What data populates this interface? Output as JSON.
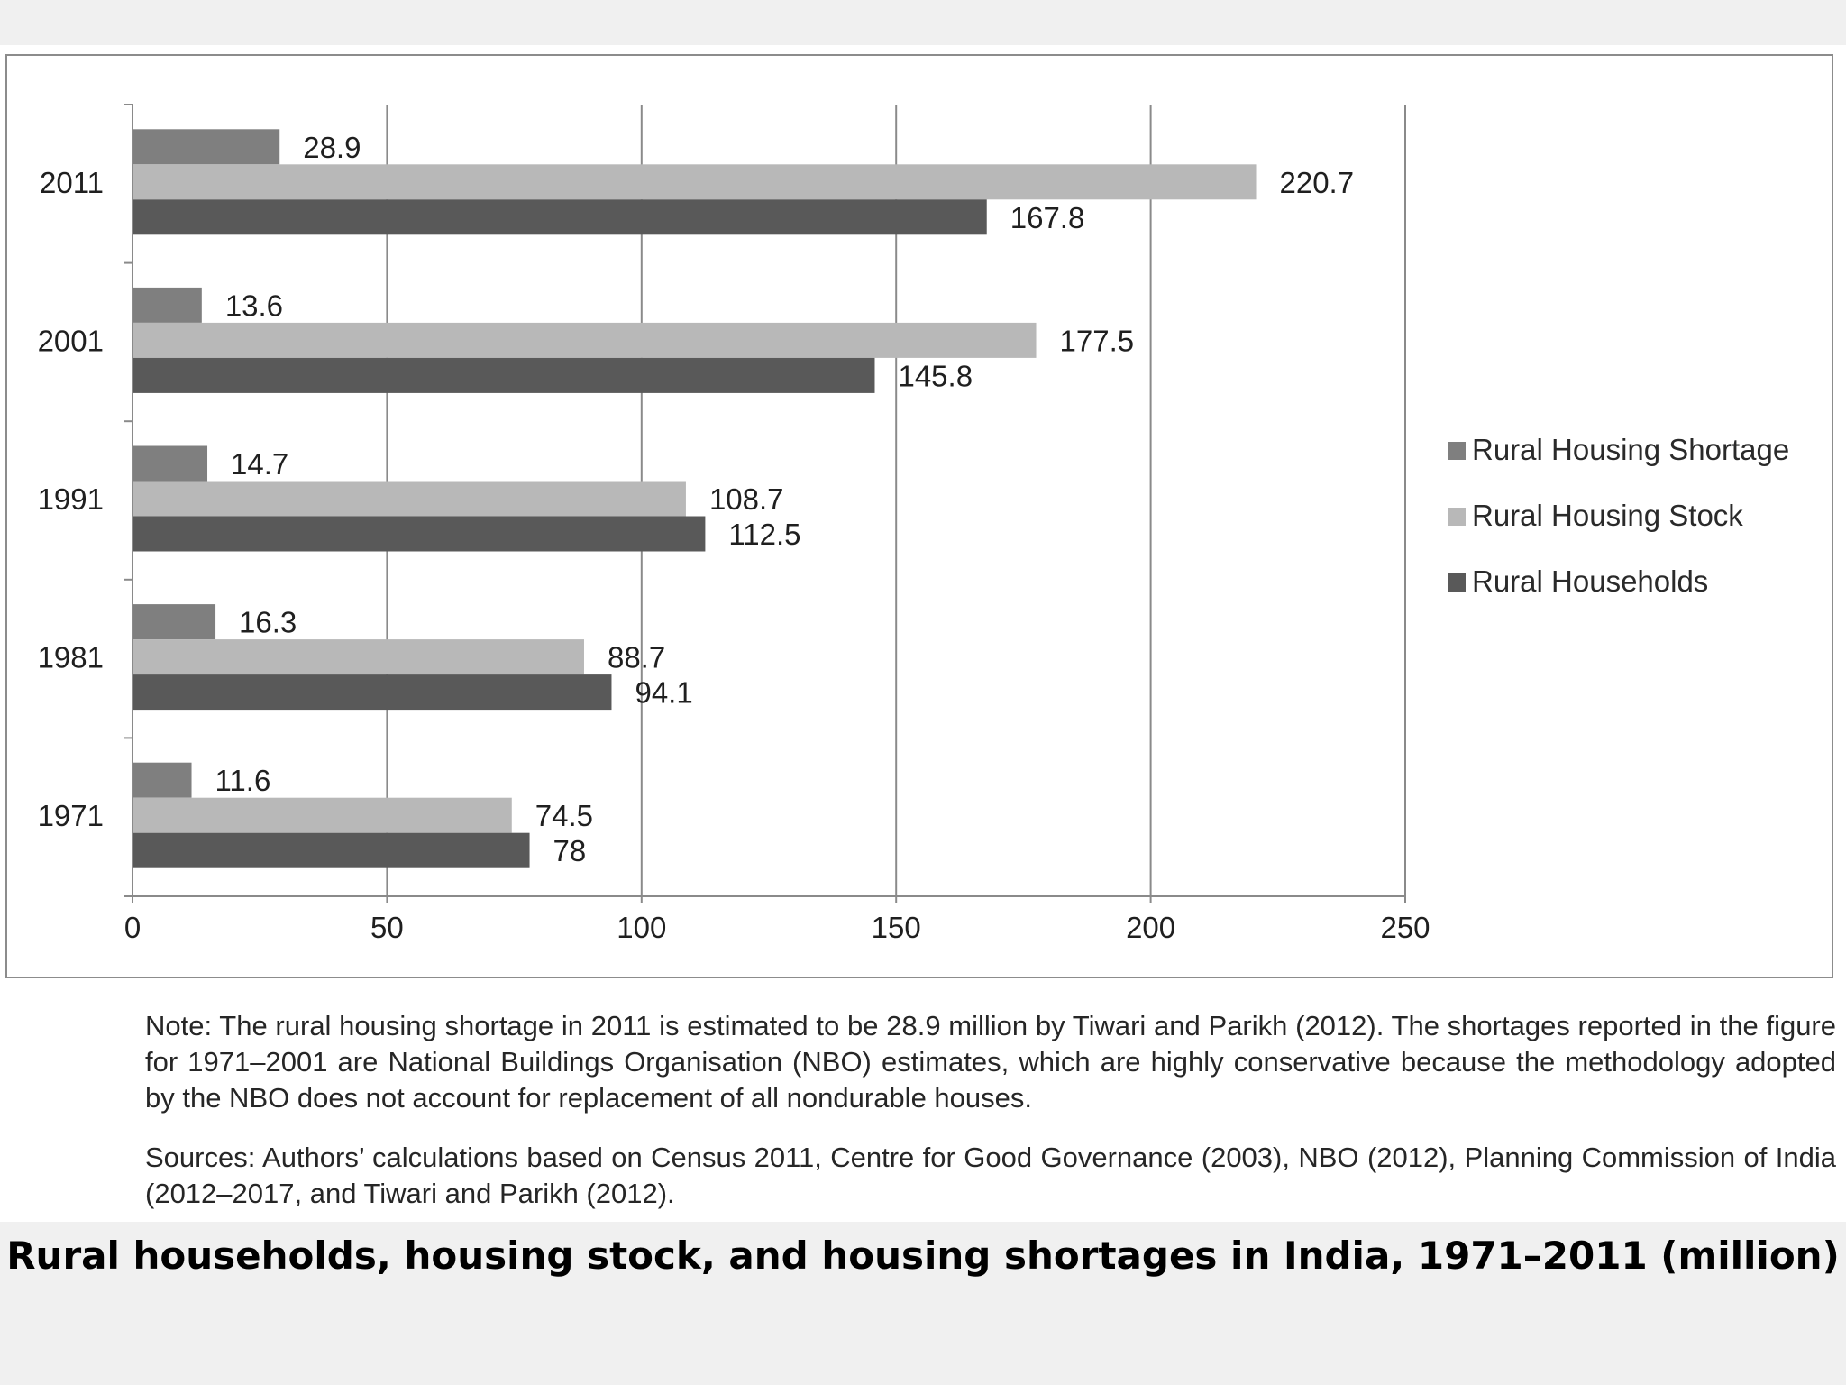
{
  "chart_data": {
    "type": "bar",
    "orientation": "horizontal",
    "categories": [
      "2011",
      "2001",
      "1991",
      "1981",
      "1971"
    ],
    "series": [
      {
        "name": "Rural Housing Shortage",
        "color": "#7f7f7f",
        "values": [
          28.9,
          13.6,
          14.7,
          16.3,
          11.6
        ],
        "labels": [
          "28.9",
          "13.6",
          "14.7",
          "16.3",
          "11.6"
        ]
      },
      {
        "name": "Rural Housing Stock",
        "color": "#b8b8b8",
        "values": [
          220.7,
          177.5,
          108.7,
          88.7,
          74.5
        ],
        "labels": [
          "220.7",
          "177.5",
          "108.7",
          "88.7",
          "74.5"
        ]
      },
      {
        "name": "Rural Households",
        "color": "#595959",
        "values": [
          167.8,
          145.8,
          112.5,
          94.1,
          78
        ],
        "labels": [
          "167.8",
          "145.8",
          "112.5",
          "94.1",
          "78"
        ]
      }
    ],
    "x_ticks": [
      "0",
      "50",
      "100",
      "150",
      "200",
      "250"
    ],
    "xlim": [
      0,
      250
    ],
    "grid": "vertical",
    "legend_position": "right"
  },
  "note": "Note: The rural housing shortage in 2011 is estimated to be 28.9 million by Tiwari and Parikh (2012). The shortages reported in the figure for 1971–2001 are National Buildings Organisation (NBO) estimates, which are highly conservative because the methodology adopted by the NBO does not account for replacement of all nondurable houses.",
  "sources": "Sources: Authors’ calculations based on Census 2011, Centre for Good Governance (2003), NBO (2012), Planning Commission of India (2012–2017, and Tiwari and Parikh (2012).",
  "caption": "Rural households, housing stock, and housing shortages in India, 1971–2011 (million)"
}
